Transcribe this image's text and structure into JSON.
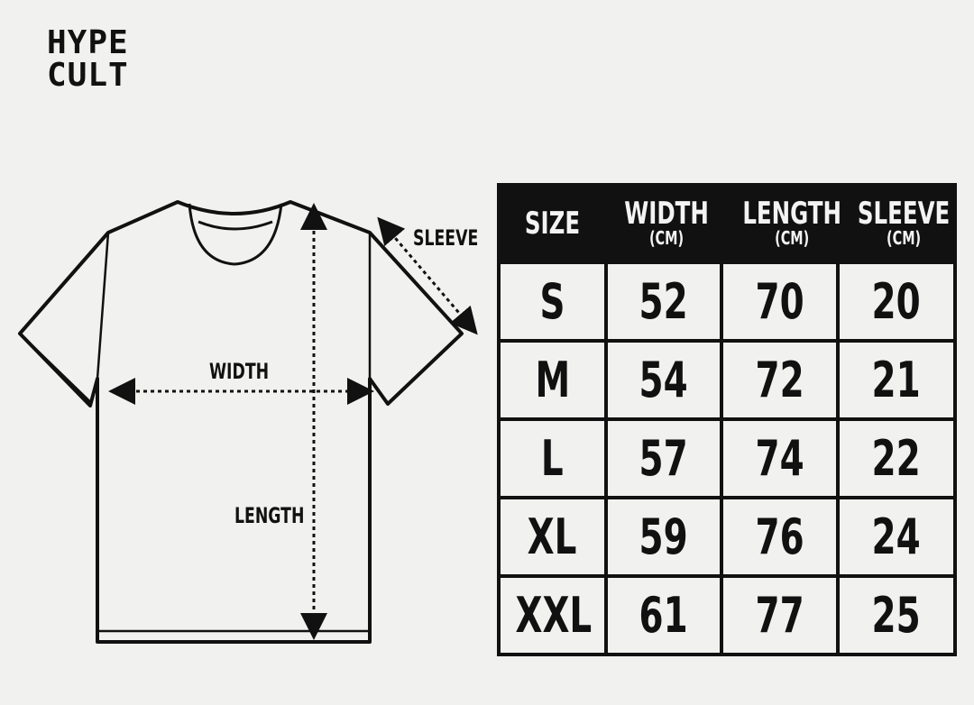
{
  "brand": {
    "line1": "HYPE",
    "line2": "CULT"
  },
  "diagram": {
    "labels": {
      "sleeve": "SLEEVE",
      "width": "WIDTH",
      "length": "LENGTH"
    }
  },
  "table": {
    "headers": [
      {
        "title": "SIZE",
        "unit": ""
      },
      {
        "title": "WIDTH",
        "unit": "(CM)"
      },
      {
        "title": "LENGTH",
        "unit": "(CM)"
      },
      {
        "title": "SLEEVE",
        "unit": "(CM)"
      }
    ],
    "rows": [
      [
        "S",
        "52",
        "70",
        "20"
      ],
      [
        "M",
        "54",
        "72",
        "21"
      ],
      [
        "L",
        "57",
        "74",
        "22"
      ],
      [
        "XL",
        "59",
        "76",
        "24"
      ],
      [
        "XXL",
        "61",
        "77",
        "25"
      ]
    ]
  },
  "colors": {
    "background": "#f1f1ef",
    "ink": "#111111"
  }
}
